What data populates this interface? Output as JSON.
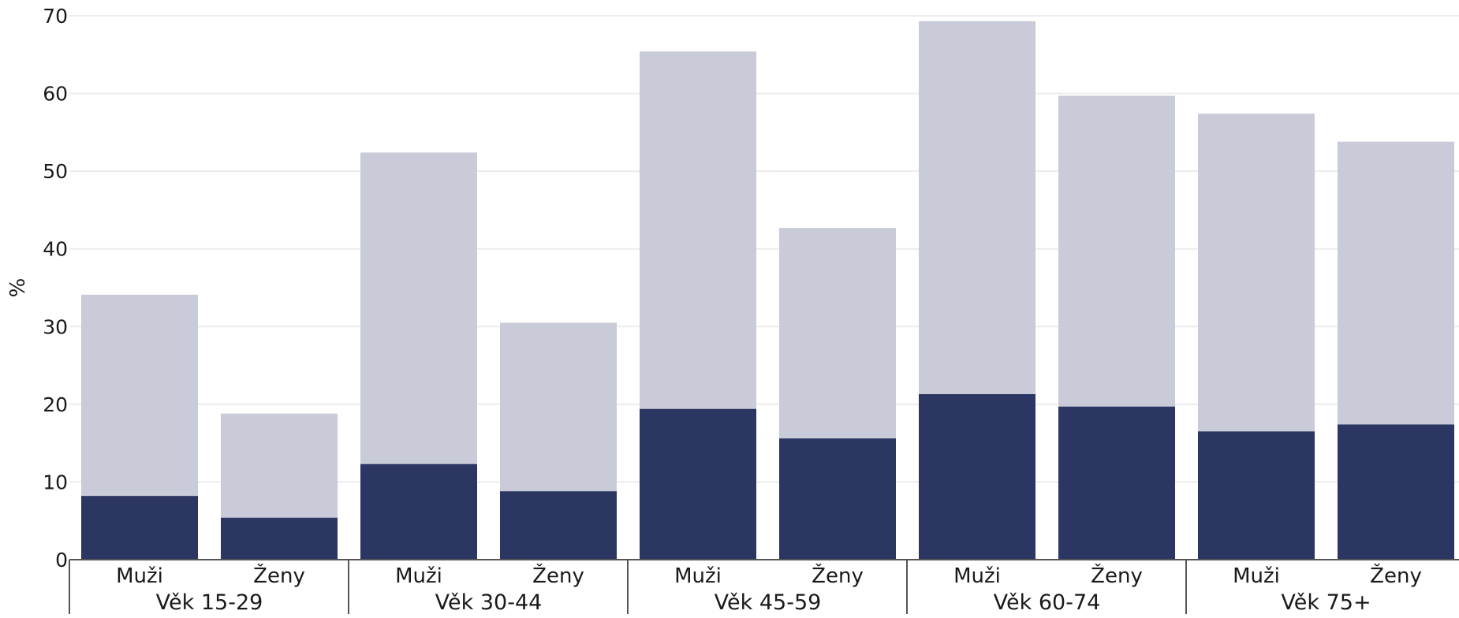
{
  "chart_data": {
    "type": "bar",
    "stacked": true,
    "title": "",
    "ylabel": "%",
    "xlabel": "",
    "ylim": [
      0,
      70
    ],
    "yticks": [
      0,
      10,
      20,
      30,
      40,
      50,
      60,
      70
    ],
    "grid": true,
    "groups": [
      "Věk 15-29",
      "Věk 30-44",
      "Věk 45-59",
      "Věk 60-74",
      "Věk 75+"
    ],
    "categories": [
      "Muži",
      "Ženy"
    ],
    "bars": [
      {
        "group": "Věk 15-29",
        "category": "Muži",
        "dark": 8.2,
        "total": 34.1
      },
      {
        "group": "Věk 15-29",
        "category": "Ženy",
        "dark": 5.4,
        "total": 18.8
      },
      {
        "group": "Věk 30-44",
        "category": "Muži",
        "dark": 12.3,
        "total": 52.4
      },
      {
        "group": "Věk 30-44",
        "category": "Ženy",
        "dark": 8.8,
        "total": 30.5
      },
      {
        "group": "Věk 45-59",
        "category": "Muži",
        "dark": 19.4,
        "total": 65.4
      },
      {
        "group": "Věk 45-59",
        "category": "Ženy",
        "dark": 15.6,
        "total": 42.7
      },
      {
        "group": "Věk 60-74",
        "category": "Muži",
        "dark": 21.3,
        "total": 69.3
      },
      {
        "group": "Věk 60-74",
        "category": "Ženy",
        "dark": 19.7,
        "total": 59.7
      },
      {
        "group": "Věk 75+",
        "category": "Muži",
        "dark": 16.5,
        "total": 57.4
      },
      {
        "group": "Věk 75+",
        "category": "Ženy",
        "dark": 17.4,
        "total": 53.8
      }
    ],
    "colors": {
      "dark": "#2b3663",
      "light": "#c9cbd8"
    }
  }
}
